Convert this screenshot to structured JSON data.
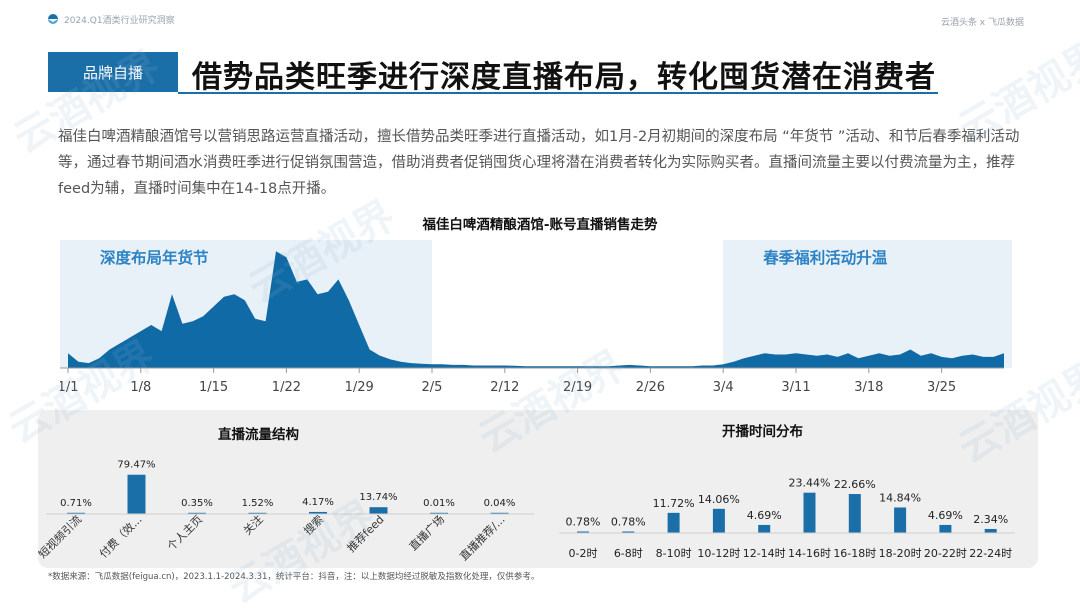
{
  "header": {
    "report_title": "2024.Q1酒类行业研究洞察",
    "brand": "云酒头条 x 飞瓜数据"
  },
  "section": {
    "tag": "品牌自播",
    "headline": "借势品类旺季进行深度直播布局，转化囤货潜在消费者"
  },
  "intro": "福佳白啤酒精酿酒馆号以营销思路运营直播活动，擅长借势品类旺季进行直播活动，如1月-2月初期间的深度布局 “年货节 ”活动、和节后春季福利活动等，通过春节期间酒水消费旺季进行促销氛围营造，借助消费者促销囤货心理将潜在消费者转化为实际购买者。直播间流量主要以付费流量为主，推荐feed为辅，直播时间集中在14-18点开播。",
  "watermark": "云酒视界",
  "colors": {
    "primary": "#1b6fa8",
    "highlight": "#e8f1f7"
  },
  "chart_data": [
    {
      "type": "area",
      "title": "福佳白啤酒精酿酒馆-账号直播销售走势",
      "x_ticks": [
        "1/1",
        "1/8",
        "1/15",
        "1/22",
        "1/29",
        "2/5",
        "2/12",
        "2/19",
        "2/26",
        "3/4",
        "3/11",
        "3/18",
        "3/25"
      ],
      "annotations": [
        {
          "label": "深度布局年货节",
          "from": "1/1",
          "to": "2/5"
        },
        {
          "label": "春季福利活动升温",
          "from": "3/4",
          "to": "3/31"
        }
      ],
      "grid": false,
      "legend": "none",
      "series": [
        {
          "values": [
            12,
            5,
            4,
            8,
            15,
            20,
            25,
            30,
            35,
            30,
            60,
            36,
            38,
            42,
            50,
            58,
            60,
            55,
            40,
            38,
            95,
            90,
            70,
            72,
            60,
            62,
            72,
            55,
            35,
            15,
            10,
            7,
            5,
            4,
            3.5,
            3,
            3,
            2.5,
            2.5,
            2,
            2,
            2,
            2,
            1.8,
            1.5,
            1.5,
            1.5,
            1.5,
            1.5,
            1.5,
            1.5,
            1.5,
            1.5,
            2,
            2.5,
            2,
            1.5,
            1.5,
            1.5,
            1.5,
            1.5,
            2,
            2,
            3,
            5,
            8,
            10,
            12,
            11,
            11,
            12,
            11,
            10,
            11,
            9,
            12,
            8,
            10,
            12,
            10,
            11,
            15,
            10,
            12,
            9,
            8,
            10,
            11,
            9,
            9,
            12
          ]
        }
      ]
    },
    {
      "type": "bar",
      "title": "直播流量结构",
      "categories": [
        "短视频引流",
        "付费（效...",
        "个人主页",
        "关注",
        "搜索",
        "推荐feed",
        "直播广场",
        "直播推荐/..."
      ],
      "values": [
        0.71,
        79.47,
        0.35,
        1.52,
        4.17,
        13.74,
        0.01,
        0.04
      ],
      "data_labels": [
        "0.71%",
        "79.47%",
        "0.35%",
        "1.52%",
        "4.17%",
        "13.74%",
        "0.01%",
        "0.04%"
      ],
      "ylim": [
        0,
        85
      ],
      "grid": false
    },
    {
      "type": "bar",
      "title": "开播时间分布",
      "categories": [
        "0-2时",
        "6-8时",
        "8-10时",
        "10-12时",
        "12-14时",
        "14-16时",
        "16-18时",
        "18-20时",
        "20-22时",
        "22-24时"
      ],
      "values": [
        0.78,
        0.78,
        11.72,
        14.06,
        4.69,
        23.44,
        22.66,
        14.84,
        4.69,
        2.34
      ],
      "data_labels": [
        "0.78%",
        "0.78%",
        "11.72%",
        "14.06%",
        "4.69%",
        "23.44%",
        "22.66%",
        "14.84%",
        "4.69%",
        "2.34%"
      ],
      "ylim": [
        0,
        25
      ],
      "grid": false
    }
  ],
  "footer": {
    "source": "*数据来源：飞瓜数据(feigua.cn)，2023.1.1-2024.3.31，统计平台：抖音，注：以上数据均经过脱敏及指数化处理，仅供参考。"
  }
}
